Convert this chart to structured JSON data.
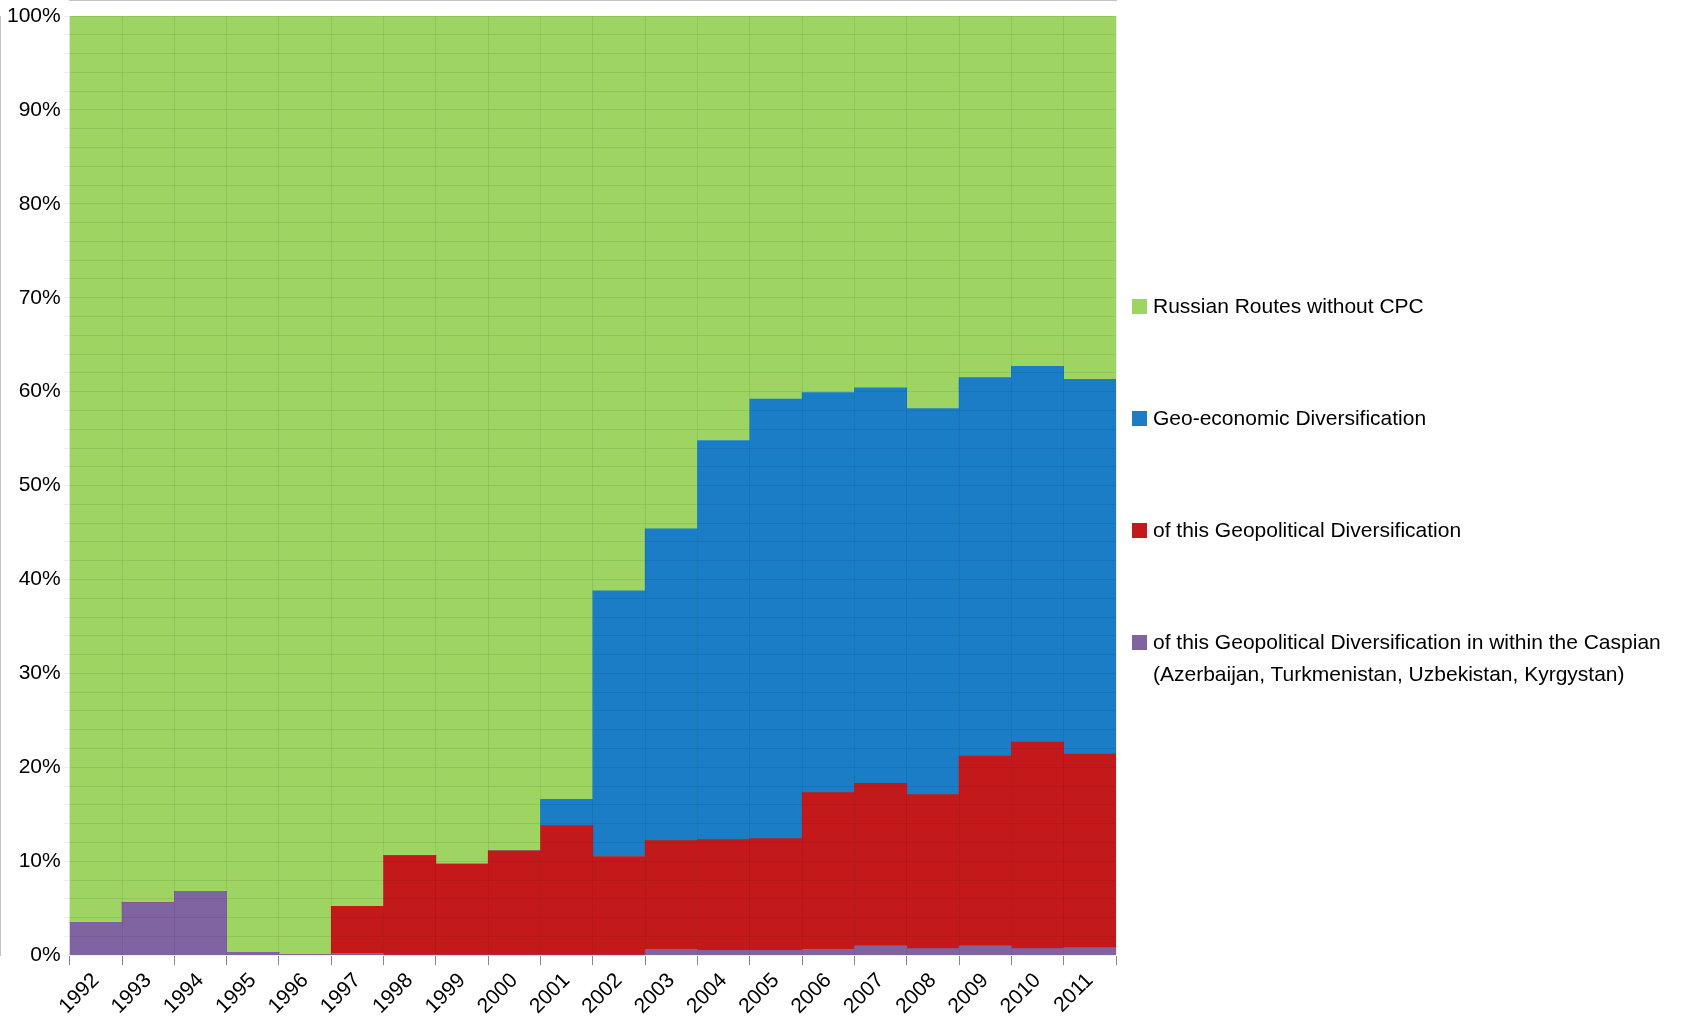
{
  "chart_data": {
    "type": "bar",
    "stacked": true,
    "categories": [
      "1992",
      "1993",
      "1994",
      "1995",
      "1996",
      "1997",
      "1998",
      "1999",
      "2000",
      "2001",
      "2002",
      "2003",
      "2004",
      "2005",
      "2006",
      "2007",
      "2008",
      "2009",
      "2010",
      "2011"
    ],
    "series": [
      {
        "name": "of this Geopolitical Diversification in within the Caspian (Azerbaijan, Turkmenistan, Uzbekistan, Kyrgystan)",
        "color": "#8064a2",
        "values": [
          3.5,
          5.6,
          6.8,
          0.3,
          0.1,
          0.2,
          0,
          0,
          0,
          0,
          0,
          0.6,
          0.5,
          0.5,
          0.6,
          1.0,
          0.7,
          1.0,
          0.7,
          0.8
        ]
      },
      {
        "name": "of this Geopolitical Diversification",
        "color": "#c4191a",
        "values": [
          0,
          0,
          0,
          0,
          0,
          5.0,
          10.6,
          9.7,
          11.1,
          13.8,
          10.5,
          11.6,
          11.8,
          11.9,
          16.7,
          17.3,
          16.4,
          20.2,
          22.0,
          20.6
        ]
      },
      {
        "name": "Geo-economic Diversification",
        "color": "#1a7dc5",
        "values": [
          0,
          0,
          0,
          0,
          0,
          0,
          0,
          0,
          0,
          2.8,
          28.3,
          33.2,
          42.5,
          46.8,
          42.6,
          42.1,
          41.1,
          40.3,
          40.0,
          39.9
        ]
      },
      {
        "name": "Russian Routes without CPC",
        "color": "#9dd462",
        "values": [
          96.5,
          94.4,
          93.2,
          99.7,
          99.9,
          94.8,
          89.4,
          90.3,
          88.9,
          83.4,
          61.2,
          54.6,
          45.2,
          40.8,
          40.1,
          39.6,
          41.8,
          38.5,
          37.3,
          38.7
        ]
      }
    ],
    "ylim": [
      0,
      100
    ],
    "yticks": [
      {
        "value": 0,
        "label": "0%"
      },
      {
        "value": 2,
        "label": null
      },
      {
        "value": 4,
        "label": null
      },
      {
        "value": 6,
        "label": null
      },
      {
        "value": 8,
        "label": null
      },
      {
        "value": 10,
        "label": "10%"
      },
      {
        "value": 12,
        "label": null
      },
      {
        "value": 14,
        "label": null
      },
      {
        "value": 16,
        "label": null
      },
      {
        "value": 18,
        "label": null
      },
      {
        "value": 20,
        "label": "20%"
      },
      {
        "value": 22,
        "label": null
      },
      {
        "value": 24,
        "label": null
      },
      {
        "value": 26,
        "label": null
      },
      {
        "value": 28,
        "label": null
      },
      {
        "value": 30,
        "label": "30%"
      },
      {
        "value": 32,
        "label": null
      },
      {
        "value": 34,
        "label": null
      },
      {
        "value": 36,
        "label": null
      },
      {
        "value": 38,
        "label": null
      },
      {
        "value": 40,
        "label": "40%"
      },
      {
        "value": 42,
        "label": null
      },
      {
        "value": 44,
        "label": null
      },
      {
        "value": 46,
        "label": null
      },
      {
        "value": 48,
        "label": null
      },
      {
        "value": 50,
        "label": "50%"
      },
      {
        "value": 52,
        "label": null
      },
      {
        "value": 54,
        "label": null
      },
      {
        "value": 56,
        "label": null
      },
      {
        "value": 58,
        "label": null
      },
      {
        "value": 60,
        "label": "60%"
      },
      {
        "value": 62,
        "label": null
      },
      {
        "value": 64,
        "label": null
      },
      {
        "value": 66,
        "label": null
      },
      {
        "value": 68,
        "label": null
      },
      {
        "value": 70,
        "label": "70%"
      },
      {
        "value": 72,
        "label": null
      },
      {
        "value": 74,
        "label": null
      },
      {
        "value": 76,
        "label": null
      },
      {
        "value": 78,
        "label": null
      },
      {
        "value": 80,
        "label": "80%"
      },
      {
        "value": 82,
        "label": null
      },
      {
        "value": 84,
        "label": null
      },
      {
        "value": 86,
        "label": null
      },
      {
        "value": 88,
        "label": null
      },
      {
        "value": 90,
        "label": "90%"
      },
      {
        "value": 92,
        "label": null
      },
      {
        "value": 94,
        "label": null
      },
      {
        "value": 96,
        "label": null
      },
      {
        "value": 98,
        "label": null
      },
      {
        "value": 100,
        "label": "100%"
      }
    ],
    "grid": true,
    "legend": "right"
  }
}
